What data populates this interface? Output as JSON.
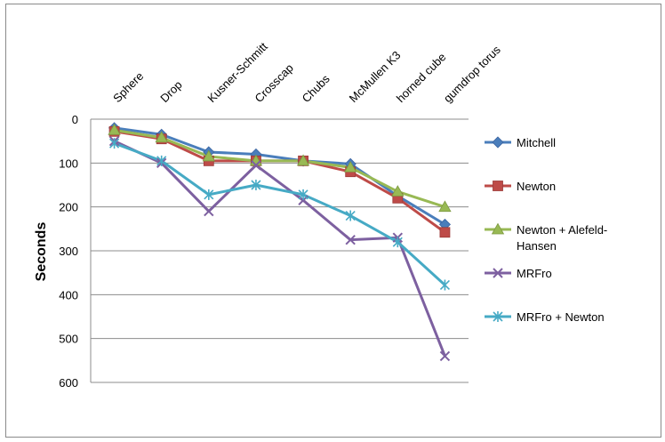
{
  "chart_data": {
    "type": "line",
    "title": "",
    "xlabel": "",
    "ylabel": "Seconds",
    "ylim": [
      0,
      600
    ],
    "y_inverted": true,
    "y_ticks": [
      0,
      100,
      200,
      300,
      400,
      500,
      600
    ],
    "x_axis_position": "top",
    "categories": [
      "Sphere",
      "Drop",
      "Kusner-Schmitt",
      "Crosscap",
      "Chubs",
      "McMullen K3",
      "horned cube",
      "gumdrop torus"
    ],
    "grid": "horizontal",
    "legend_position": "right",
    "series": [
      {
        "name": "Mitchell",
        "color": "#4a7ebb",
        "marker": "diamond",
        "values": [
          20,
          35,
          75,
          80,
          95,
          102,
          175,
          240
        ]
      },
      {
        "name": "Newton",
        "color": "#be4b48",
        "marker": "square",
        "values": [
          28,
          45,
          95,
          95,
          95,
          120,
          180,
          258
        ]
      },
      {
        "name": "Newton + Alefeld-Hansen",
        "color": "#98b954",
        "marker": "triangle",
        "values": [
          25,
          42,
          85,
          95,
          95,
          110,
          165,
          200
        ]
      },
      {
        "name": "MRFro",
        "color": "#7d60a0",
        "marker": "x",
        "values": [
          50,
          100,
          210,
          105,
          185,
          275,
          270,
          540
        ]
      },
      {
        "name": "MRFro + Newton",
        "color": "#46aac5",
        "marker": "star",
        "values": [
          55,
          95,
          172,
          150,
          172,
          220,
          280,
          378
        ]
      }
    ]
  }
}
